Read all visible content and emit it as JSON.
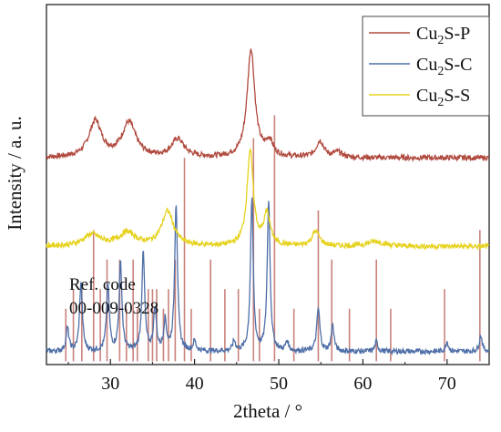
{
  "chart_data": {
    "type": "line",
    "xlabel": "2theta / °",
    "ylabel": "Intensity / a. u.",
    "xlim": [
      22.4,
      75
    ],
    "x_ticks": [
      30,
      40,
      50,
      60,
      70
    ],
    "y_ticks_shown": false,
    "grid": false,
    "legend_position": "top-right",
    "series": [
      {
        "name": "Cu2S-P",
        "color": "#b04a3f",
        "baseline": 6.3,
        "peaks": [
          [
            28.2,
            1.1,
            0.9
          ],
          [
            32.2,
            1.05,
            1.0
          ],
          [
            38.0,
            0.55,
            0.9
          ],
          [
            46.7,
            3.3,
            0.55
          ],
          [
            48.9,
            0.45,
            0.5
          ],
          [
            54.9,
            0.5,
            0.55
          ],
          [
            57.0,
            0.15,
            0.6
          ]
        ]
      },
      {
        "name": "Cu2S-C",
        "color": "#4f6fa8",
        "baseline": 0.4,
        "peaks": [
          [
            24.9,
            0.7,
            0.2
          ],
          [
            26.5,
            2.1,
            0.2
          ],
          [
            29.7,
            2.0,
            0.2
          ],
          [
            31.2,
            2.7,
            0.2
          ],
          [
            33.9,
            3.0,
            0.2
          ],
          [
            35.3,
            1.3,
            0.2
          ],
          [
            36.5,
            0.9,
            0.2
          ],
          [
            37.8,
            4.5,
            0.2
          ],
          [
            40.0,
            0.3,
            0.2
          ],
          [
            44.7,
            0.3,
            0.2
          ],
          [
            46.8,
            4.6,
            0.2
          ],
          [
            48.8,
            4.6,
            0.2
          ],
          [
            51.0,
            0.3,
            0.2
          ],
          [
            54.7,
            1.3,
            0.22
          ],
          [
            56.4,
            0.8,
            0.2
          ],
          [
            61.6,
            0.3,
            0.2
          ],
          [
            70.0,
            0.3,
            0.2
          ],
          [
            74.0,
            0.5,
            0.2
          ]
        ]
      },
      {
        "name": "Cu2S-S",
        "color": "#e6d21e",
        "baseline": 3.6,
        "peaks": [
          [
            27.8,
            0.35,
            1.2
          ],
          [
            32.0,
            0.4,
            1.2
          ],
          [
            36.8,
            1.05,
            0.85
          ],
          [
            46.6,
            2.9,
            0.45
          ],
          [
            48.6,
            0.95,
            0.45
          ],
          [
            54.4,
            0.45,
            0.55
          ],
          [
            61.5,
            0.15,
            1.2
          ]
        ]
      }
    ],
    "reference": {
      "label_line1": "Ref. code",
      "label_line2": "00-009-0328",
      "color": "#c9827b",
      "lines": [
        [
          24.7,
          1.6
        ],
        [
          25.6,
          2.2
        ],
        [
          26.6,
          2.3
        ],
        [
          28.0,
          4.0
        ],
        [
          28.8,
          2.2
        ],
        [
          29.6,
          3.1
        ],
        [
          31.1,
          3.1
        ],
        [
          31.9,
          1.6
        ],
        [
          32.7,
          3.1
        ],
        [
          33.2,
          1.6
        ],
        [
          34.5,
          2.2
        ],
        [
          35.0,
          2.2
        ],
        [
          35.5,
          2.2
        ],
        [
          36.3,
          1.6
        ],
        [
          36.9,
          2.2
        ],
        [
          37.7,
          3.1
        ],
        [
          38.8,
          6.2
        ],
        [
          39.6,
          1.6
        ],
        [
          41.9,
          3.1
        ],
        [
          43.6,
          2.2
        ],
        [
          45.2,
          2.2
        ],
        [
          47.0,
          6.8
        ],
        [
          47.7,
          1.6
        ],
        [
          49.5,
          7.5
        ],
        [
          51.8,
          1.6
        ],
        [
          54.7,
          4.6
        ],
        [
          56.3,
          3.1
        ],
        [
          58.4,
          1.6
        ],
        [
          61.6,
          3.1
        ],
        [
          63.3,
          1.6
        ],
        [
          69.7,
          2.2
        ],
        [
          73.9,
          4.0
        ]
      ]
    }
  },
  "legend": {
    "items": [
      {
        "base": "Cu",
        "sub": "2",
        "rest": "S-P",
        "color": "#b04a3f"
      },
      {
        "base": "Cu",
        "sub": "2",
        "rest": "S-C",
        "color": "#4f6fa8"
      },
      {
        "base": "Cu",
        "sub": "2",
        "rest": "S-S",
        "color": "#e6d21e"
      }
    ]
  }
}
